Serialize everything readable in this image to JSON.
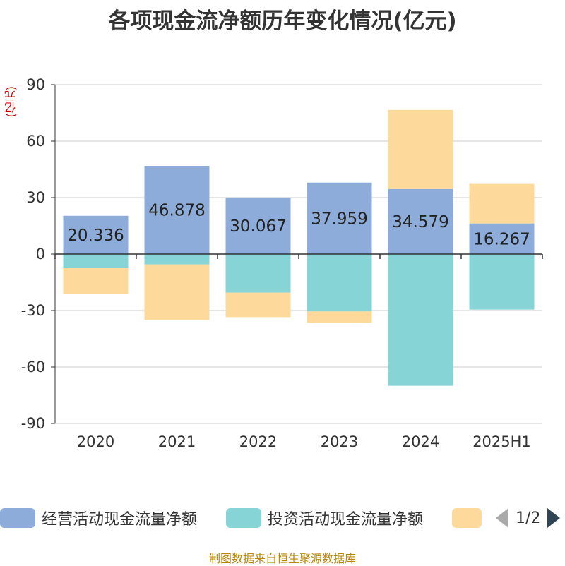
{
  "title": "各项现金流净额历年变化情况(亿元)",
  "source": "制图数据来自恒生聚源数据库",
  "legend": {
    "page": "1/2"
  },
  "chart_data": {
    "type": "bar",
    "stacked": true,
    "unit_label": "(亿元)",
    "categories": [
      "2020",
      "2021",
      "2022",
      "2023",
      "2024",
      "2025H1"
    ],
    "ylim": [
      -90,
      90
    ],
    "yticks": [
      90,
      60,
      30,
      0,
      -30,
      -60,
      -90
    ],
    "grid": true,
    "legend_position": "bottom",
    "series": [
      {
        "name": "经营活动现金流量净额",
        "color": "#8eacd9",
        "values": [
          20.336,
          46.878,
          30.067,
          37.959,
          34.579,
          16.267
        ],
        "labels": [
          "20.336",
          "46.878",
          "30.067",
          "37.959",
          "34.579",
          "16.267"
        ]
      },
      {
        "name": "投资活动现金流量净额",
        "color": "#86d4d6",
        "values": [
          -7.5,
          -5.5,
          -20.5,
          -30.5,
          -70.0,
          -29.5
        ]
      },
      {
        "name": "",
        "color": "#fdd99b",
        "values": [
          -13.5,
          -29.5,
          -13.0,
          -6.0,
          42.0,
          21.0
        ]
      }
    ]
  }
}
